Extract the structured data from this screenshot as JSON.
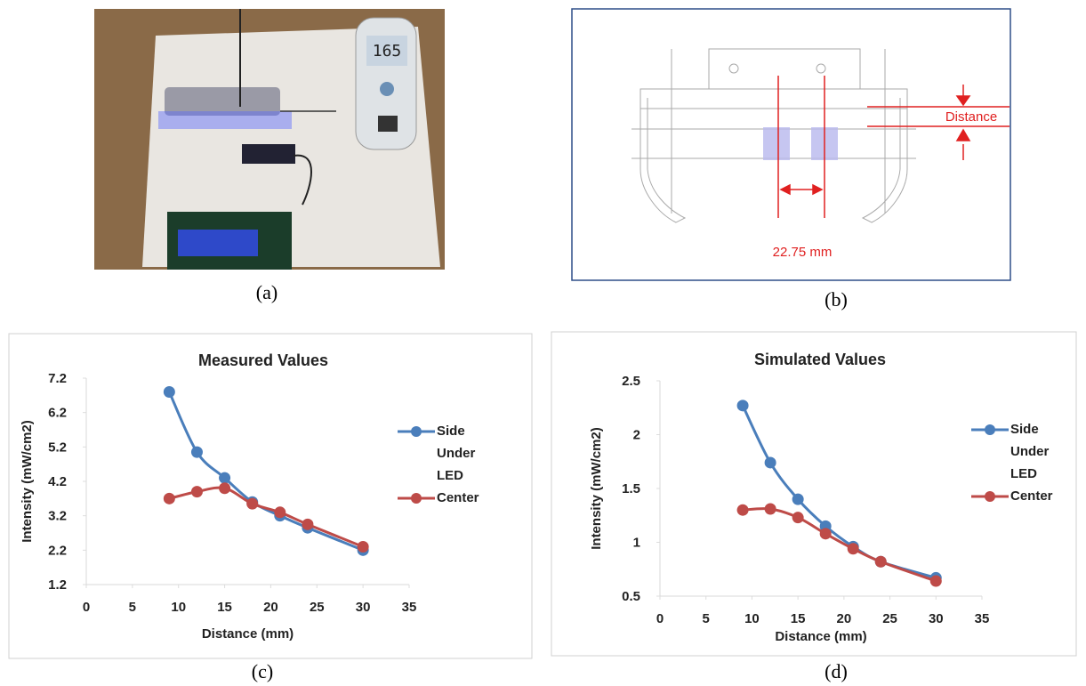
{
  "panels": {
    "a": "(a)",
    "b": "(b)",
    "c": "(c)",
    "d": "(d)"
  },
  "photo": {
    "meter_reading": "165"
  },
  "diagram": {
    "distance_label": "Distance",
    "spacing_label": "22.75 mm"
  },
  "chart_data": [
    {
      "type": "line",
      "title": "Measured Values",
      "xlabel": "Distance (mm)",
      "ylabel": "Intensity (mW/cm2)",
      "x": [
        9,
        12,
        15,
        18,
        21,
        24,
        30
      ],
      "xlim": [
        0,
        35
      ],
      "xticks": [
        0,
        5,
        10,
        15,
        20,
        25,
        30,
        35
      ],
      "ylim": [
        1.2,
        7.2
      ],
      "yticks": [
        1.2,
        2.2,
        3.2,
        4.2,
        5.2,
        6.2,
        7.2
      ],
      "legend": "right",
      "series": [
        {
          "name": "Side Under LED",
          "color": "#4a7ebb",
          "values": [
            6.8,
            5.05,
            4.3,
            3.6,
            3.2,
            2.85,
            2.2
          ]
        },
        {
          "name": "Center",
          "color": "#be4b48",
          "values": [
            3.7,
            3.9,
            4.0,
            3.55,
            3.3,
            2.95,
            2.3
          ]
        }
      ]
    },
    {
      "type": "line",
      "title": "Simulated Values",
      "xlabel": "Distance (mm)",
      "ylabel": "Intensity (mW/cm2)",
      "x": [
        9,
        12,
        15,
        18,
        21,
        24,
        30
      ],
      "xlim": [
        0,
        35
      ],
      "xticks": [
        0,
        5,
        10,
        15,
        20,
        25,
        30,
        35
      ],
      "ylim": [
        0.5,
        2.5
      ],
      "yticks": [
        0.5,
        1,
        1.5,
        2,
        2.5
      ],
      "legend": "right",
      "series": [
        {
          "name": "Side Under LED",
          "color": "#4a7ebb",
          "values": [
            2.27,
            1.74,
            1.4,
            1.15,
            0.96,
            0.82,
            0.67
          ]
        },
        {
          "name": "Center",
          "color": "#be4b48",
          "values": [
            1.3,
            1.31,
            1.23,
            1.08,
            0.94,
            0.82,
            0.64
          ]
        }
      ]
    }
  ]
}
